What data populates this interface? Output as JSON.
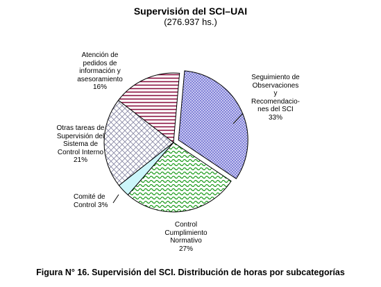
{
  "chart_data": {
    "type": "pie",
    "title": "Supervisión del SCI–UAI",
    "subtitle": "(276.937 hs.)",
    "caption": "Figura N° 16. Supervisión del SCI. Distribución de horas por subcategorías",
    "slices": [
      {
        "label": "Seguimiento de\nObservaciones\ny\nRecomendacio-\nnes del SCI\n33%",
        "value": 33,
        "color": "#6a6ad6",
        "pattern": "dots"
      },
      {
        "label": "Control\nCumplimiento\nNormativo\n27%",
        "value": 27,
        "color": "#22aa22",
        "pattern": "waves"
      },
      {
        "label": "Comité de\nControl   3%",
        "value": 3,
        "color": "#66e0ee",
        "pattern": "solid"
      },
      {
        "label": "Otras tareas de\nSupervisión del\nSistema de\nControl Interno\n21%",
        "value": 21,
        "color": "#8a8aa6",
        "pattern": "diamond"
      },
      {
        "label": "Atención de\npedidos de\ninformación y\nasesoramiento\n16%",
        "value": 16,
        "color": "#8a1040",
        "pattern": "hlines"
      }
    ]
  }
}
